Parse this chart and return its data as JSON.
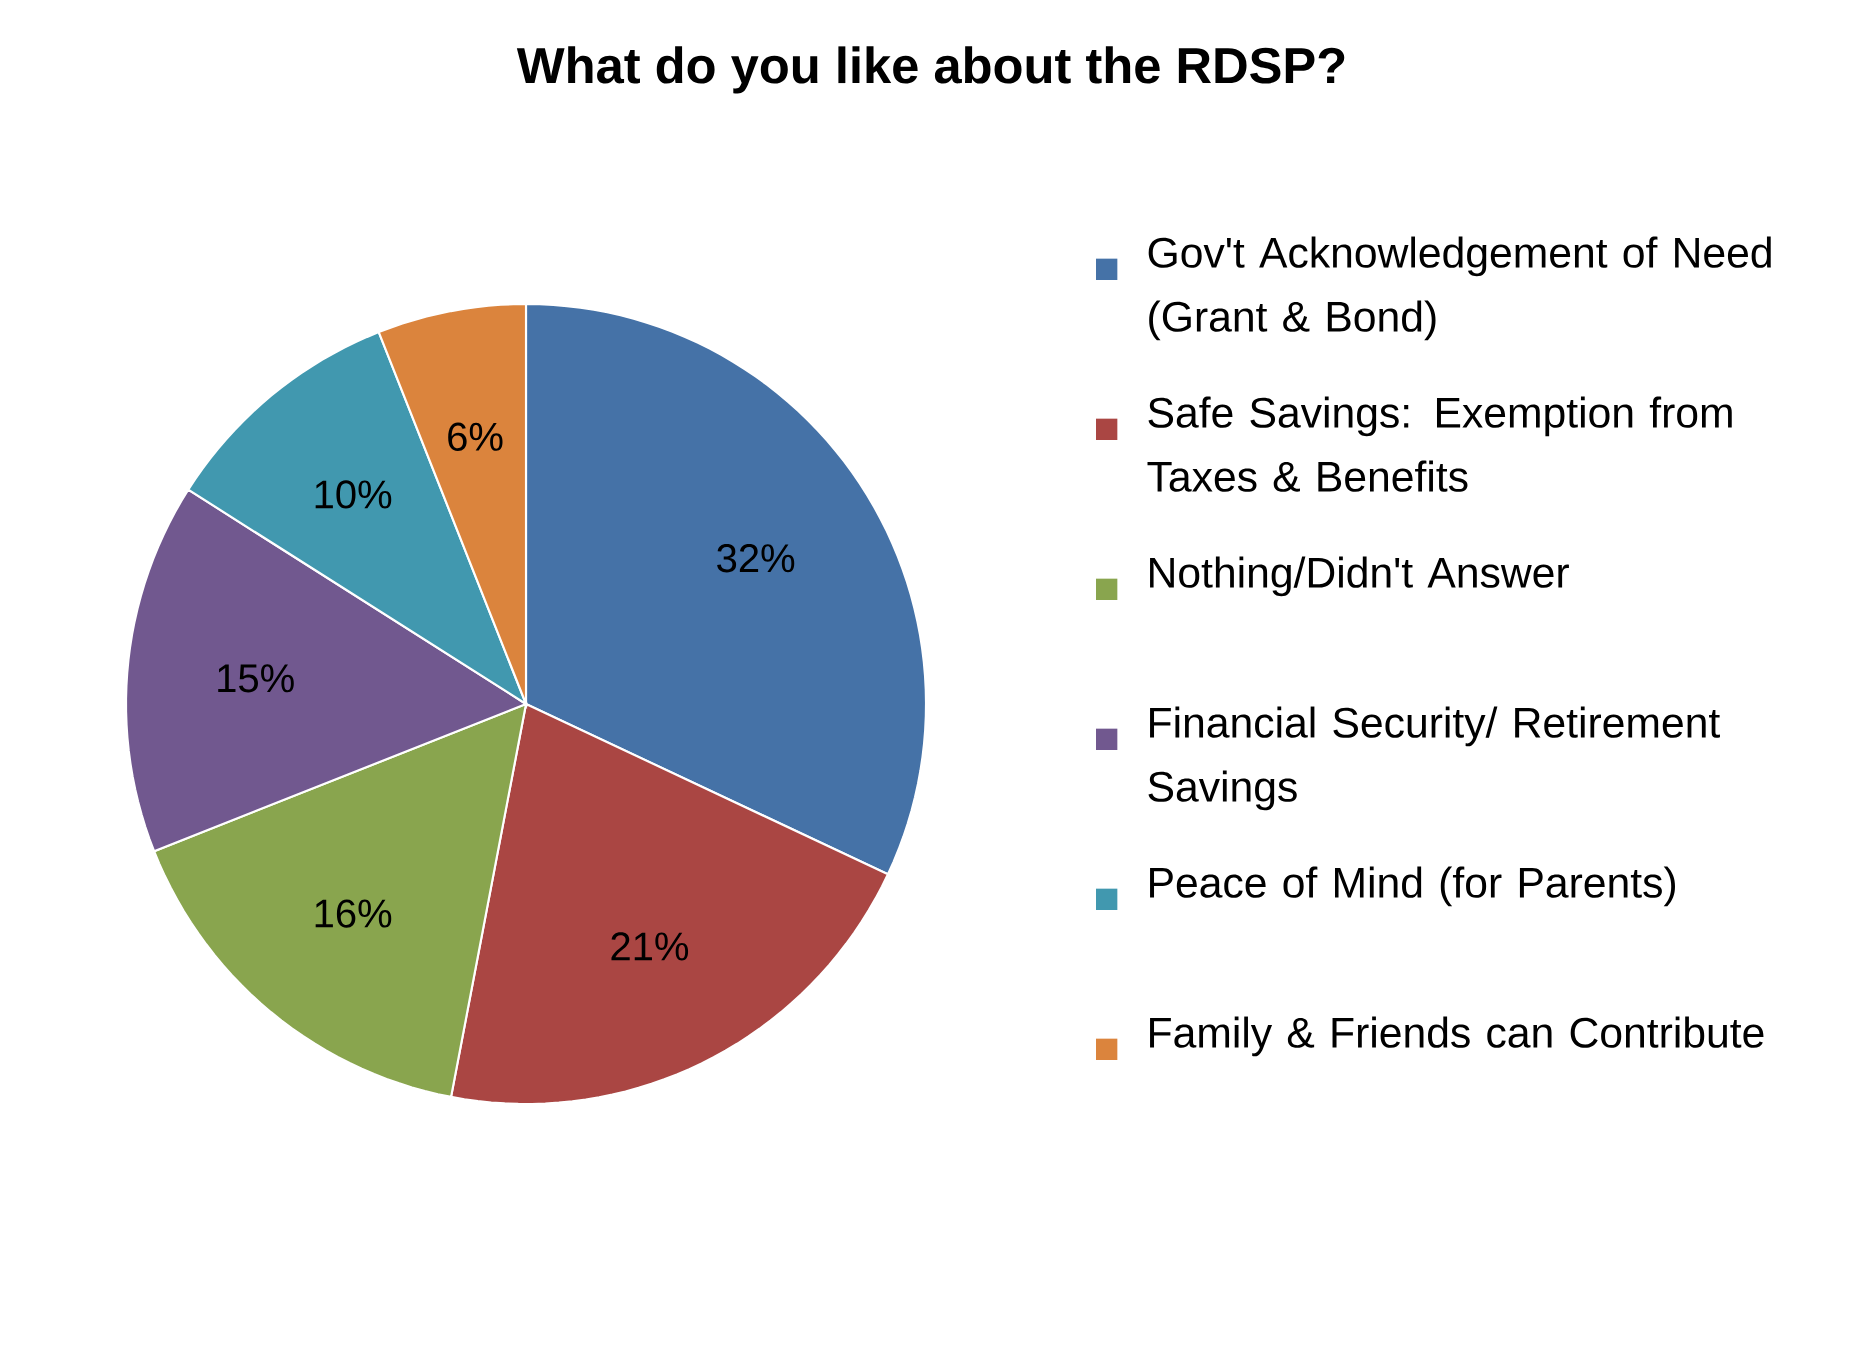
{
  "chart_data": {
    "type": "pie",
    "title": "What do you like about the RDSP?",
    "categories": [
      "Gov't Acknowledgement of Need (Grant & Bond)",
      "Safe Savings: Exemption from Taxes & Benefits",
      "Nothing/Didn't Answer",
      "Financial Security/ Retirement Savings",
      "Peace of Mind (for Parents)",
      "Family & Friends can Contribute"
    ],
    "values": [
      32,
      21,
      16,
      15,
      10,
      6
    ],
    "value_labels": [
      "32%",
      "21%",
      "16%",
      "15%",
      "10%",
      "6%"
    ],
    "colors": [
      "#4572a7",
      "#aa4643",
      "#89a54e",
      "#71588f",
      "#4198af",
      "#db843d"
    ],
    "legend": "right"
  }
}
